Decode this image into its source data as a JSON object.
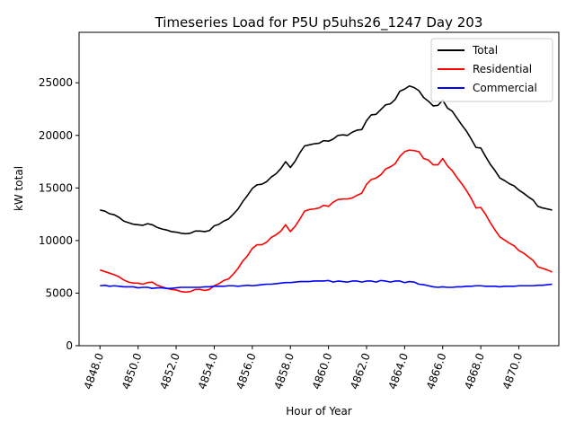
{
  "chart_data": {
    "type": "line",
    "title": "Timeseries Load for P5U p5uhs26_1247  Day 203",
    "xlabel": "Hour of Year",
    "ylabel": "kW total",
    "xlim": [
      4846.9,
      4872.1
    ],
    "ylim": [
      0,
      29800
    ],
    "xticks": [
      4848,
      4850,
      4852,
      4854,
      4856,
      4858,
      4860,
      4862,
      4864,
      4866,
      4868,
      4870
    ],
    "xtick_labels": [
      "4848.0",
      "4850.0",
      "4852.0",
      "4854.0",
      "4856.0",
      "4858.0",
      "4860.0",
      "4862.0",
      "4864.0",
      "4866.0",
      "4868.0",
      "4870.0"
    ],
    "yticks": [
      0,
      5000,
      10000,
      15000,
      20000,
      25000
    ],
    "ytick_labels": [
      "0",
      "5000",
      "10000",
      "15000",
      "20000",
      "25000"
    ],
    "legend_position": "top-right",
    "x_start": 4848,
    "x_step": 0.25,
    "series": [
      {
        "name": "Total",
        "color": "#000000",
        "values": [
          12900,
          12800,
          12550,
          12450,
          12200,
          11850,
          11700,
          11550,
          11500,
          11450,
          11600,
          11500,
          11250,
          11100,
          11000,
          10850,
          10800,
          10700,
          10650,
          10700,
          10900,
          10900,
          10850,
          10950,
          11400,
          11550,
          11850,
          12050,
          12500,
          13000,
          13700,
          14300,
          14950,
          15300,
          15350,
          15600,
          16050,
          16350,
          16850,
          17500,
          16950,
          17550,
          18350,
          19000,
          19100,
          19200,
          19250,
          19500,
          19450,
          19650,
          20000,
          20050,
          20000,
          20300,
          20500,
          20550,
          21400,
          21950,
          22000,
          22450,
          22900,
          23000,
          23400,
          24200,
          24400,
          24700,
          24550,
          24250,
          23600,
          23250,
          22800,
          22850,
          23350,
          22600,
          22300,
          21650,
          21000,
          20400,
          19650,
          18850,
          18800,
          18000,
          17250,
          16650,
          15950,
          15700,
          15400,
          15200,
          14800,
          14500,
          14150,
          13850,
          13250,
          13100,
          13000,
          12900
        ]
      },
      {
        "name": "Residential",
        "color": "#ff0000",
        "values": [
          7200,
          7050,
          6900,
          6750,
          6550,
          6250,
          6050,
          5950,
          5950,
          5850,
          6000,
          6050,
          5750,
          5600,
          5450,
          5350,
          5300,
          5150,
          5100,
          5150,
          5350,
          5350,
          5250,
          5350,
          5700,
          5900,
          6200,
          6350,
          6800,
          7350,
          8050,
          8550,
          9250,
          9600,
          9600,
          9850,
          10300,
          10550,
          10900,
          11500,
          10850,
          11350,
          12050,
          12800,
          12950,
          13000,
          13100,
          13350,
          13250,
          13650,
          13900,
          13950,
          13950,
          14050,
          14300,
          14500,
          15350,
          15800,
          15950,
          16250,
          16800,
          17000,
          17300,
          18000,
          18450,
          18600,
          18550,
          18450,
          17800,
          17650,
          17200,
          17200,
          17800,
          17100,
          16650,
          16000,
          15400,
          14750,
          14000,
          13100,
          13150,
          12500,
          11700,
          11000,
          10350,
          10050,
          9750,
          9500,
          9050,
          8800,
          8450,
          8100,
          7500,
          7350,
          7200,
          7000
        ]
      },
      {
        "name": "Commercial",
        "color": "#0000ff",
        "values": [
          5700,
          5750,
          5650,
          5700,
          5650,
          5600,
          5600,
          5600,
          5500,
          5550,
          5550,
          5450,
          5500,
          5500,
          5450,
          5450,
          5500,
          5550,
          5550,
          5550,
          5550,
          5550,
          5600,
          5600,
          5650,
          5650,
          5650,
          5700,
          5700,
          5650,
          5700,
          5750,
          5700,
          5750,
          5800,
          5850,
          5850,
          5900,
          5950,
          6000,
          6000,
          6050,
          6100,
          6100,
          6100,
          6150,
          6150,
          6150,
          6200,
          6050,
          6150,
          6100,
          6050,
          6150,
          6150,
          6050,
          6150,
          6150,
          6050,
          6200,
          6150,
          6050,
          6150,
          6150,
          6000,
          6100,
          6050,
          5850,
          5800,
          5700,
          5600,
          5550,
          5600,
          5550,
          5550,
          5600,
          5600,
          5650,
          5650,
          5700,
          5700,
          5650,
          5650,
          5650,
          5600,
          5650,
          5650,
          5650,
          5700,
          5700,
          5700,
          5700,
          5750,
          5750,
          5800,
          5850
        ]
      }
    ]
  }
}
